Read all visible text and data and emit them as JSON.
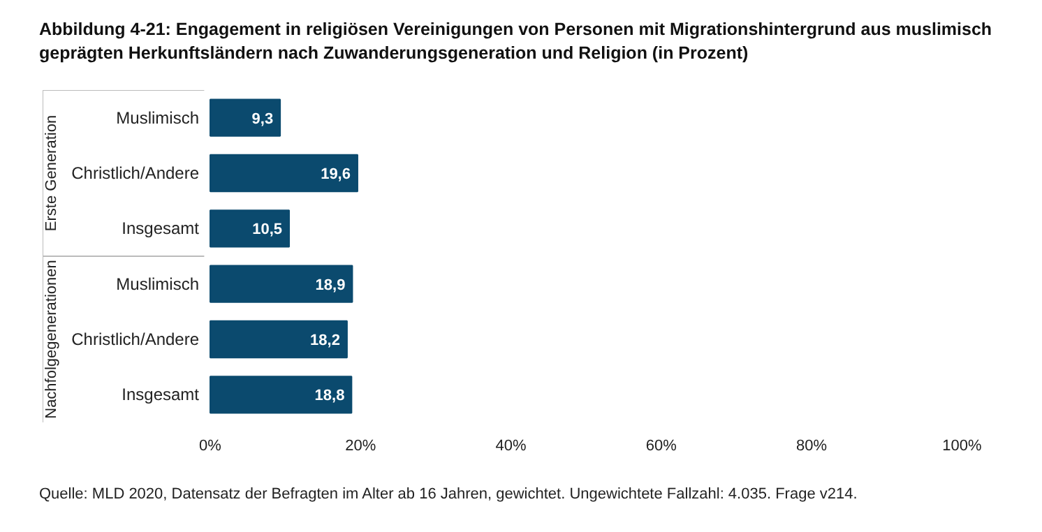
{
  "chart_data": {
    "type": "bar",
    "orientation": "horizontal",
    "title": "Abbildung 4-21:  Engagement in religiösen Vereinigungen von Personen mit Migrationshintergrund aus muslimisch geprägten Herkunftsländern nach Zuwanderungsgeneration und Religion (in Prozent)",
    "categories": [
      "Muslimisch",
      "Christlich/Andere",
      "Insgesamt",
      "Muslimisch",
      "Christlich/Andere",
      "Insgesamt"
    ],
    "values": [
      9.3,
      19.6,
      10.5,
      18.9,
      18.2,
      18.8
    ],
    "value_labels": [
      "9,3",
      "19,6",
      "10,5",
      "18,9",
      "18,2",
      "18,8"
    ],
    "color": "#0b4a6e",
    "xlim": [
      0,
      100
    ],
    "xticks": [
      {
        "value": 0,
        "label": "0%"
      },
      {
        "value": 20,
        "label": "20%"
      },
      {
        "value": 40,
        "label": "40%"
      },
      {
        "value": 60,
        "label": "60%"
      },
      {
        "value": 80,
        "label": "80%"
      },
      {
        "value": 100,
        "label": "100%"
      }
    ],
    "grid": false,
    "annotations": [
      "Erste Generation",
      "Nachfolgegenerationen",
      "Quelle: MLD 2020, Datensatz der Befragten im Alter ab 16 Jahren, gewichtet. Ungewichtete Fallzahl: 4.035. Frage v214."
    ]
  }
}
